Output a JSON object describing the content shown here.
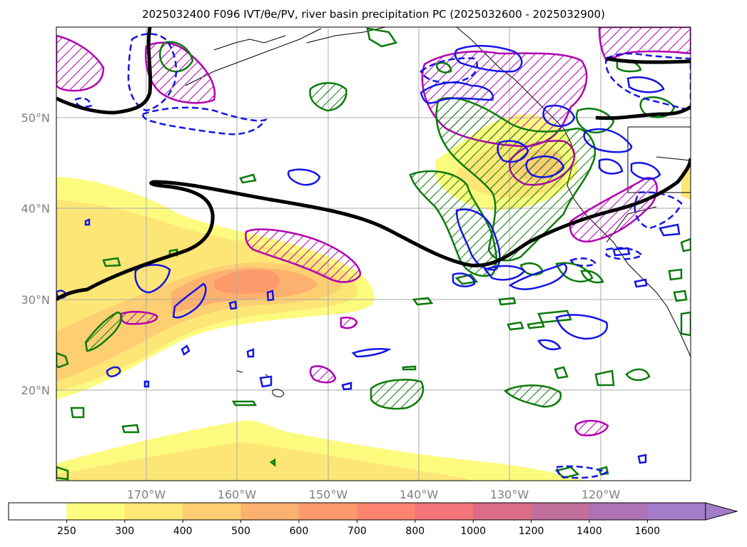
{
  "title": "2025032400 F096 IVT/θe/PV, river basin precipitation PC (2025032600 - 2025032900)",
  "map": {
    "lat_labels": [
      "50°N",
      "40°N",
      "30°N",
      "20°N"
    ],
    "lon_labels": [
      "170°W",
      "160°W",
      "150°W",
      "140°W",
      "130°W",
      "120°W"
    ],
    "gridlines": true,
    "projection": "PlateCarree",
    "lon_range": [
      -180,
      -110
    ],
    "lat_range": [
      10,
      60
    ]
  },
  "colorbar": {
    "ticks": [
      "250",
      "300",
      "400",
      "500",
      "600",
      "700",
      "800",
      "1000",
      "1200",
      "1400",
      "1600"
    ],
    "colors": [
      "#ffffff",
      "#fdfb7e",
      "#fde676",
      "#fdcf72",
      "#fdb170",
      "#fd9a6c",
      "#fb8470",
      "#f27478",
      "#da6d85",
      "#c16f9c",
      "#ad72b4",
      "#a27cc8"
    ],
    "extend": "max"
  },
  "legend_colors": {
    "pv_contour": "#000000",
    "theta_e_positive": "#1414e6",
    "theta_e_negative": "#1414e6",
    "precip_contour": "#0a7a0a",
    "hatched_region": "#b000b0",
    "grid": "#aaaaaa",
    "tick_label": "#808080"
  }
}
